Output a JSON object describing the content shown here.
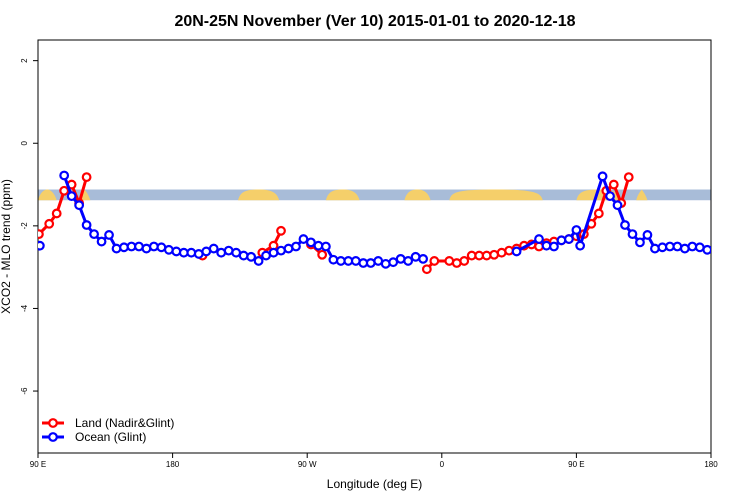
{
  "chart_data": {
    "type": "line",
    "title": "20N-25N November (Ver 10)   2015-01-01 to 2020-12-18",
    "xlabel": "Longitude (deg E)",
    "ylabel": "XCO2 - MLO trend (ppm)",
    "xlim": [
      90,
      450
    ],
    "ylim": [
      -7.5,
      2.5
    ],
    "x_ticks": [
      {
        "value": 90,
        "label": "90 E"
      },
      {
        "value": 162,
        "label": "180"
      },
      {
        "value": 234,
        "label": "90 W"
      },
      {
        "value": 306,
        "label": "0"
      },
      {
        "value": 378,
        "label": "90 E"
      },
      {
        "value": 450,
        "label": "180"
      }
    ],
    "y_ticks": [
      {
        "value": 2,
        "label": "2"
      },
      {
        "value": 0,
        "label": "0"
      },
      {
        "value": -2,
        "label": "-2"
      },
      {
        "value": -4,
        "label": "-4"
      },
      {
        "value": -6,
        "label": "-6"
      }
    ],
    "grid": false,
    "legend_position": "bottom-left",
    "map_band": {
      "y_top": -1.12,
      "y_bottom": -1.38,
      "ocean_color": "#a8bcd8",
      "land_color": "#f5cf6a"
    },
    "series": [
      {
        "name": "Land (Nadir&Glint)",
        "color": "#ff0000",
        "points": [
          [
            90.5,
            -2.2
          ],
          [
            96,
            -1.95
          ],
          [
            100,
            -1.7
          ],
          [
            104,
            -1.15
          ],
          [
            108,
            -1.0
          ],
          [
            112,
            -1.45
          ],
          [
            116,
            -0.82
          ],
          [
            178,
            -2.72
          ],
          [
            210,
            -2.65
          ],
          [
            216,
            -2.48
          ],
          [
            220,
            -2.12
          ],
          [
            236,
            -2.45
          ],
          [
            242,
            -2.7
          ],
          [
            298,
            -3.05
          ],
          [
            302,
            -2.85
          ],
          [
            310,
            -2.85
          ],
          [
            314,
            -2.9
          ],
          [
            318,
            -2.85
          ],
          [
            322,
            -2.72
          ],
          [
            326,
            -2.72
          ],
          [
            330,
            -2.72
          ],
          [
            334,
            -2.7
          ],
          [
            338,
            -2.65
          ],
          [
            342,
            -2.6
          ],
          [
            346,
            -2.55
          ],
          [
            350,
            -2.48
          ],
          [
            354,
            -2.45
          ],
          [
            358,
            -2.5
          ],
          [
            362,
            -2.42
          ],
          [
            366,
            -2.38
          ],
          [
            370,
            -2.35
          ],
          [
            374,
            -2.32
          ],
          [
            378,
            -2.25
          ],
          [
            382,
            -2.2
          ],
          [
            386,
            -1.95
          ],
          [
            390,
            -1.7
          ],
          [
            394,
            -1.15
          ],
          [
            398,
            -1.0
          ],
          [
            402,
            -1.45
          ],
          [
            406,
            -0.82
          ]
        ]
      },
      {
        "name": "Ocean (Glint)",
        "color": "#0000ff",
        "points": [
          [
            91,
            -2.48
          ],
          [
            104,
            -0.78
          ],
          [
            108,
            -1.28
          ],
          [
            112,
            -1.5
          ],
          [
            116,
            -1.98
          ],
          [
            120,
            -2.2
          ],
          [
            124,
            -2.38
          ],
          [
            128,
            -2.22
          ],
          [
            132,
            -2.55
          ],
          [
            136,
            -2.52
          ],
          [
            140,
            -2.5
          ],
          [
            144,
            -2.5
          ],
          [
            148,
            -2.55
          ],
          [
            152,
            -2.5
          ],
          [
            156,
            -2.52
          ],
          [
            160,
            -2.58
          ],
          [
            164,
            -2.62
          ],
          [
            168,
            -2.65
          ],
          [
            172,
            -2.65
          ],
          [
            176,
            -2.68
          ],
          [
            180,
            -2.62
          ],
          [
            184,
            -2.55
          ],
          [
            188,
            -2.65
          ],
          [
            192,
            -2.6
          ],
          [
            196,
            -2.65
          ],
          [
            200,
            -2.72
          ],
          [
            204,
            -2.75
          ],
          [
            208,
            -2.85
          ],
          [
            212,
            -2.72
          ],
          [
            216,
            -2.65
          ],
          [
            220,
            -2.6
          ],
          [
            224,
            -2.55
          ],
          [
            228,
            -2.5
          ],
          [
            232,
            -2.32
          ],
          [
            236,
            -2.4
          ],
          [
            240,
            -2.48
          ],
          [
            244,
            -2.5
          ],
          [
            248,
            -2.82
          ],
          [
            252,
            -2.85
          ],
          [
            256,
            -2.85
          ],
          [
            260,
            -2.85
          ],
          [
            264,
            -2.9
          ],
          [
            268,
            -2.9
          ],
          [
            272,
            -2.85
          ],
          [
            276,
            -2.92
          ],
          [
            280,
            -2.88
          ],
          [
            284,
            -2.8
          ],
          [
            288,
            -2.85
          ],
          [
            292,
            -2.75
          ],
          [
            296,
            -2.8
          ],
          [
            346,
            -2.62
          ],
          [
            358,
            -2.32
          ],
          [
            362,
            -2.48
          ],
          [
            366,
            -2.5
          ],
          [
            370,
            -2.35
          ],
          [
            374,
            -2.32
          ],
          [
            378,
            -2.1
          ],
          [
            380,
            -2.48
          ],
          [
            392,
            -0.8
          ],
          [
            396,
            -1.28
          ],
          [
            400,
            -1.5
          ],
          [
            404,
            -1.98
          ],
          [
            408,
            -2.2
          ],
          [
            412,
            -2.4
          ],
          [
            416,
            -2.22
          ],
          [
            420,
            -2.55
          ],
          [
            424,
            -2.52
          ],
          [
            428,
            -2.5
          ],
          [
            432,
            -2.5
          ],
          [
            436,
            -2.55
          ],
          [
            440,
            -2.5
          ],
          [
            444,
            -2.52
          ],
          [
            448,
            -2.58
          ]
        ]
      }
    ]
  }
}
